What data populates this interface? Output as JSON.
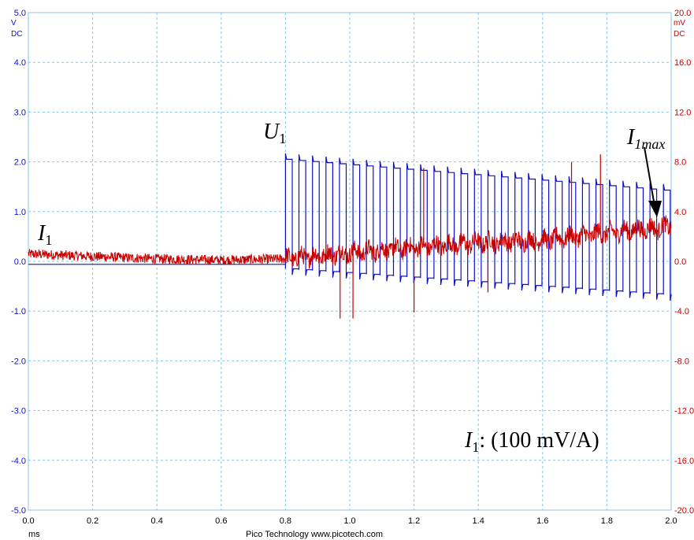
{
  "chart_data": {
    "type": "line",
    "x_unit": "ms",
    "xlim": [
      0.0,
      2.0
    ],
    "x_ticks": [
      "0.0",
      "0.2",
      "0.4",
      "0.6",
      "0.8",
      "1.0",
      "1.2",
      "1.4",
      "1.6",
      "1.8",
      "2.0"
    ],
    "left_axis": {
      "unit": "V",
      "coupling": "DC",
      "ylim": [
        -5.0,
        5.0
      ],
      "ticks": [
        "5.0",
        "4.0",
        "3.0",
        "2.0",
        "1.0",
        "0.0",
        "-1.0",
        "-2.0",
        "-3.0",
        "-4.0",
        "-5.0"
      ],
      "color": "#1010c8"
    },
    "right_axis": {
      "unit": "mV",
      "coupling": "DC",
      "ylim": [
        -20.0,
        20.0
      ],
      "ticks": [
        "20.0",
        "16.0",
        "12.0",
        "8.0",
        "4.0",
        "0.0",
        "-4.0",
        "-8.0",
        "-12.0",
        "-16.0",
        "-20.0"
      ],
      "color": "#c80000"
    },
    "grid": true,
    "series": [
      {
        "axis": "left",
        "color": "#1010c8",
        "baseline_before_start": -0.06,
        "start_ms": 0.8,
        "switching_period_ms": 0.042,
        "high_level_start": 2.05,
        "high_level_end": 1.42,
        "low_level_start": -0.15,
        "low_level_end": -0.68,
        "segments": [
          {
            "x": [
              0.0,
              0.8
            ],
            "y": [
              -0.06,
              -0.06
            ]
          },
          {
            "x": [
              0.8,
              2.0
            ],
            "high": [
              2.05,
              1.42
            ],
            "low": [
              -0.15,
              -0.68
            ]
          }
        ]
      },
      {
        "axis": "right",
        "color": "#c80000",
        "x": [
          0.0,
          0.2,
          0.4,
          0.6,
          0.8,
          1.0,
          1.2,
          1.4,
          1.6,
          1.8,
          2.0
        ],
        "y": [
          0.6,
          0.4,
          0.2,
          0.1,
          0.2,
          0.7,
          1.1,
          1.5,
          1.7,
          2.3,
          2.8
        ],
        "noise_mv": 0.4,
        "spikes": [
          {
            "x": 0.97,
            "y": -4.6
          },
          {
            "x": 1.01,
            "y": -4.6
          },
          {
            "x": 1.2,
            "y": -4.1
          },
          {
            "x": 1.23,
            "y": 7.5
          },
          {
            "x": 1.43,
            "y": -2.5
          },
          {
            "x": 1.69,
            "y": 8.0
          },
          {
            "x": 1.78,
            "y": 8.6
          }
        ]
      }
    ]
  },
  "annotations": {
    "i1_left": {
      "main": "I",
      "sub": "1"
    },
    "u1": {
      "main": "U",
      "sub": "1"
    },
    "i1max": {
      "main": "I",
      "sub": "1max"
    },
    "scale_note": {
      "main": "I",
      "sub": "1",
      "rest": ": (100 mV/A)"
    }
  },
  "footer": {
    "unit_label": "ms",
    "brand": "Pico Technology   www.picotech.com"
  }
}
